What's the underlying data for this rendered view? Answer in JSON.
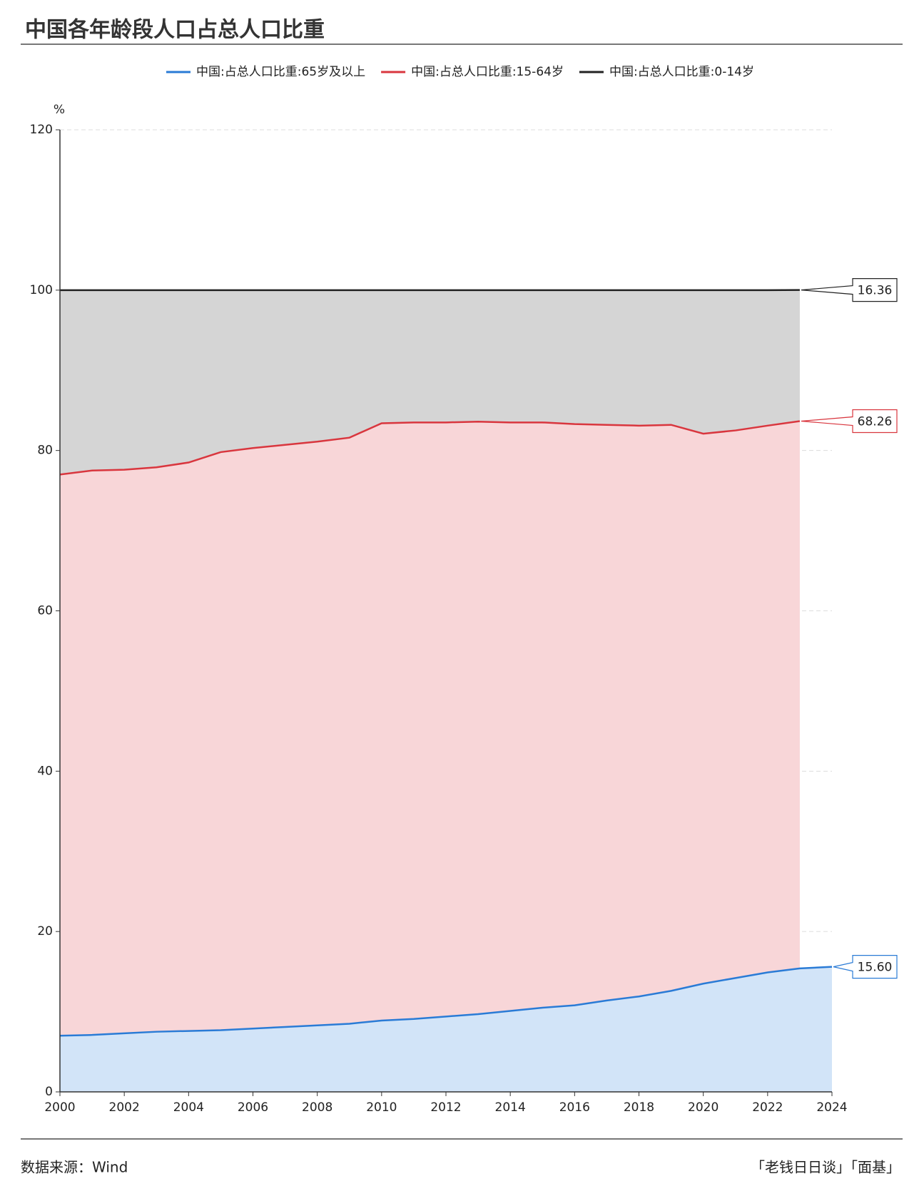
{
  "chart_data": {
    "type": "stacked-area",
    "title": "中国各年龄段人口占总人口比重",
    "ylabel": "%",
    "source": "数据来源：Wind",
    "credit": "「老钱日日谈」「面基」",
    "x": [
      2000,
      2001,
      2002,
      2003,
      2004,
      2005,
      2006,
      2007,
      2008,
      2009,
      2010,
      2011,
      2012,
      2013,
      2014,
      2015,
      2016,
      2017,
      2018,
      2019,
      2020,
      2021,
      2022,
      2023,
      2024
    ],
    "xlim": [
      2000,
      2024
    ],
    "xticks": [
      2000,
      2002,
      2004,
      2006,
      2008,
      2010,
      2012,
      2014,
      2016,
      2018,
      2020,
      2022,
      2024
    ],
    "ylim": [
      0,
      120
    ],
    "yticks": [
      0,
      20,
      40,
      60,
      80,
      100,
      120
    ],
    "grid": true,
    "series": [
      {
        "name": "中国:占总人口比重:65岁及以上",
        "color": "#2a7bd6",
        "fill": "#d2e4f8",
        "values": [
          7.0,
          7.1,
          7.3,
          7.5,
          7.6,
          7.7,
          7.9,
          8.1,
          8.3,
          8.5,
          8.9,
          9.1,
          9.4,
          9.7,
          10.1,
          10.5,
          10.8,
          11.4,
          11.9,
          12.6,
          13.5,
          14.2,
          14.9,
          15.4,
          15.6
        ],
        "value_labels": [
          null,
          null,
          null,
          null,
          null,
          null,
          null,
          null,
          null,
          null,
          null,
          null,
          null,
          null,
          null,
          null,
          null,
          null,
          null,
          null,
          null,
          null,
          null,
          null,
          "15.60"
        ]
      },
      {
        "name": "中国:占总人口比重:15-64岁",
        "color": "#d9363e",
        "fill": "#f8d6d8",
        "values": [
          70.0,
          70.4,
          70.3,
          70.4,
          70.9,
          72.1,
          72.4,
          72.6,
          72.8,
          73.1,
          74.5,
          74.4,
          74.1,
          73.9,
          73.4,
          73.0,
          72.5,
          71.8,
          71.2,
          70.6,
          68.6,
          68.3,
          68.2,
          68.26,
          null
        ],
        "value_labels": [
          null,
          null,
          null,
          null,
          null,
          null,
          null,
          null,
          null,
          null,
          null,
          null,
          null,
          null,
          null,
          null,
          null,
          null,
          null,
          null,
          null,
          null,
          null,
          "68.26",
          null
        ]
      },
      {
        "name": "中国:占总人口比重:0-14岁",
        "color": "#222222",
        "fill": "#d5d5d5",
        "values": [
          23.0,
          22.5,
          22.4,
          22.1,
          21.5,
          20.2,
          19.7,
          19.3,
          18.9,
          18.4,
          16.6,
          16.5,
          16.5,
          16.4,
          16.5,
          16.5,
          16.7,
          16.8,
          16.9,
          16.8,
          17.9,
          17.5,
          16.9,
          16.36,
          null
        ],
        "value_labels": [
          null,
          null,
          null,
          null,
          null,
          null,
          null,
          null,
          null,
          null,
          null,
          null,
          null,
          null,
          null,
          null,
          null,
          null,
          null,
          null,
          null,
          null,
          null,
          "16.36",
          null
        ]
      }
    ]
  }
}
